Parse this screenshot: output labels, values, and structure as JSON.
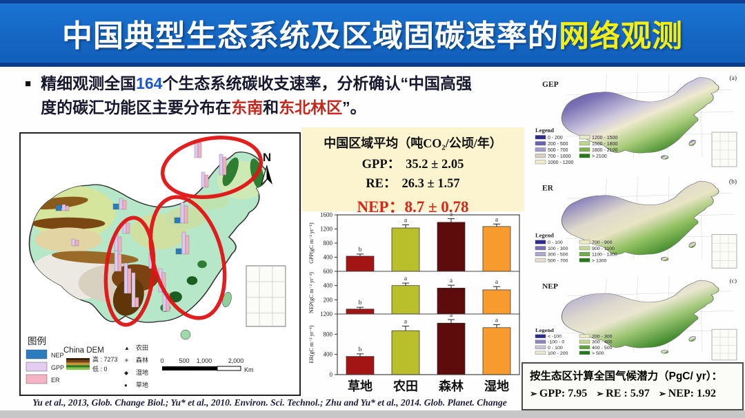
{
  "title": {
    "main": "中国典型生态系统及区域固碳速率的",
    "highlight": "网络观测"
  },
  "bullet": {
    "marker": "■",
    "line1_a": "精细观测全国",
    "line1_b": "164",
    "line1_c": "个生态系统碳收支速率，分析确认“中国高强",
    "line2_a": "度的碳汇功能区主要分布在",
    "line2_b": "东南",
    "line2_c": "和",
    "line2_d": "东北林区",
    "line2_e": "”。"
  },
  "left_map": {
    "north_label": "N",
    "legend_title": "图例",
    "series": [
      {
        "label": "NEP",
        "color": "#2b7bbf"
      },
      {
        "label": "GPP",
        "color": "#e3cdf0"
      },
      {
        "label": "ER",
        "color": "#f6b3c5"
      }
    ],
    "dem_title": "China DEM",
    "dem_high": "高 : 7273",
    "dem_low": "低 : 0",
    "symbols": [
      {
        "glyph": "▲",
        "label": "农田"
      },
      {
        "glyph": "✳",
        "label": "森林"
      },
      {
        "glyph": "◆",
        "label": "湿地"
      },
      {
        "glyph": "●",
        "label": "草地"
      }
    ],
    "scale_ticks": [
      "0",
      "500",
      "1,000",
      "2,000"
    ],
    "scale_unit": "Km"
  },
  "stats_box": {
    "title": "中国区域平均（吨CO₂/公顷/年）",
    "rows": [
      {
        "label": "GPP：",
        "value": "35.2 ± 2.05"
      },
      {
        "label": "RE：",
        "value": "26.3 ± 1.57"
      }
    ],
    "nep_label": "NEP：",
    "nep_value": "8.7 ± 0.78"
  },
  "chart_data": {
    "type": "bar",
    "categories": [
      "草地",
      "农田",
      "森林",
      "湿地"
    ],
    "bar_colors": [
      "#a31515",
      "#b8bf2a",
      "#5e0b0b",
      "#f79b2e"
    ],
    "panels": [
      {
        "name": "GPP",
        "ylabel": "GPP(gC m⁻² yr⁻¹)",
        "ylim": [
          0,
          1600
        ],
        "ticks": [
          400,
          800,
          1200,
          1600
        ],
        "values": [
          430,
          1230,
          1390,
          1270
        ],
        "errors": [
          60,
          90,
          100,
          70
        ],
        "letters": [
          "b",
          "a",
          "a",
          "a"
        ]
      },
      {
        "name": "NEP",
        "ylabel": "NEP(gC m⁻² yr⁻¹)",
        "ylim": [
          0,
          600
        ],
        "ticks": [
          200,
          400,
          600
        ],
        "values": [
          70,
          400,
          365,
          340
        ],
        "errors": [
          25,
          35,
          40,
          45
        ],
        "letters": [
          "b",
          "a",
          "a",
          "a"
        ]
      },
      {
        "name": "ER",
        "ylabel": "ER(gC m⁻² yr⁻¹)",
        "ylim": [
          0,
          1200
        ],
        "ticks": [
          0,
          400,
          800,
          1200
        ],
        "values": [
          360,
          870,
          1020,
          930
        ],
        "errors": [
          50,
          90,
          70,
          60
        ],
        "letters": [
          "b",
          "a",
          "a",
          "a"
        ]
      }
    ]
  },
  "right_maps": [
    {
      "name": "GEP",
      "tag": "(a)",
      "legend_title": "Legend",
      "legend_left": [
        "0 - 200",
        "200 - 500",
        "500 - 700",
        "700 - 1000",
        "1000 - 1200"
      ],
      "legend_right": [
        "1200 - 1500",
        "1500 - 1800",
        "1800 - 2100",
        "> 2100"
      ],
      "colors_left": [
        "#2f2c8e",
        "#6c63ae",
        "#a39bc8",
        "#d6cfc2",
        "#f0ecce"
      ],
      "colors_right": [
        "#e4eac6",
        "#bcd48e",
        "#7fb254",
        "#267a1c"
      ]
    },
    {
      "name": "ER",
      "tag": "(b)",
      "legend_title": "Legend",
      "legend_left": [
        "0 - 100",
        "100 - 300",
        "300 - 500",
        "500 - 700"
      ],
      "legend_right": [
        "700 - 900",
        "900 - 1100",
        "1100 - 1300",
        "> 1300"
      ],
      "colors_left": [
        "#2f2c8e",
        "#7a71b5",
        "#b0a9cd",
        "#e3dfd0"
      ],
      "colors_right": [
        "#e9e9c2",
        "#c6d897",
        "#6fae4a",
        "#267a1c"
      ]
    },
    {
      "name": "NEP",
      "tag": "(c)",
      "legend_title": "Legend",
      "legend_left": [
        "< -100",
        "-100 - 0",
        "0 - 100",
        "100 - 200"
      ],
      "legend_right": [
        "200 - 300",
        "300 - 400",
        "400 - 500",
        "> 500"
      ],
      "colors_left": [
        "#2f2c8e",
        "#8d86bd",
        "#c8c3d8",
        "#e8e5d2"
      ],
      "colors_right": [
        "#e9eac5",
        "#c2d68f",
        "#5ea33f",
        "#267a1c"
      ]
    }
  ],
  "potential_box": {
    "title": "按生态区计算全国气候潜力（PgC/ yr）：",
    "arrow": "➢",
    "items": [
      {
        "label": "GPP:",
        "value": "7.95"
      },
      {
        "label": "RE :",
        "value": "5.97"
      },
      {
        "label": "NEP:",
        "value": "1.92"
      }
    ]
  },
  "citation": "Yu et al., 2013, Glob. Change Biol.; Yu* et al., 2010. Environ. Sci. Technol.;  Zhu and Yu* et al., 2014. Glob. Planet. Change",
  "colors": {
    "title_bg": "#1566c4",
    "title_highlight": "#f3ee14",
    "accent_red": "#d5281b",
    "link_blue": "#1a57c8"
  }
}
